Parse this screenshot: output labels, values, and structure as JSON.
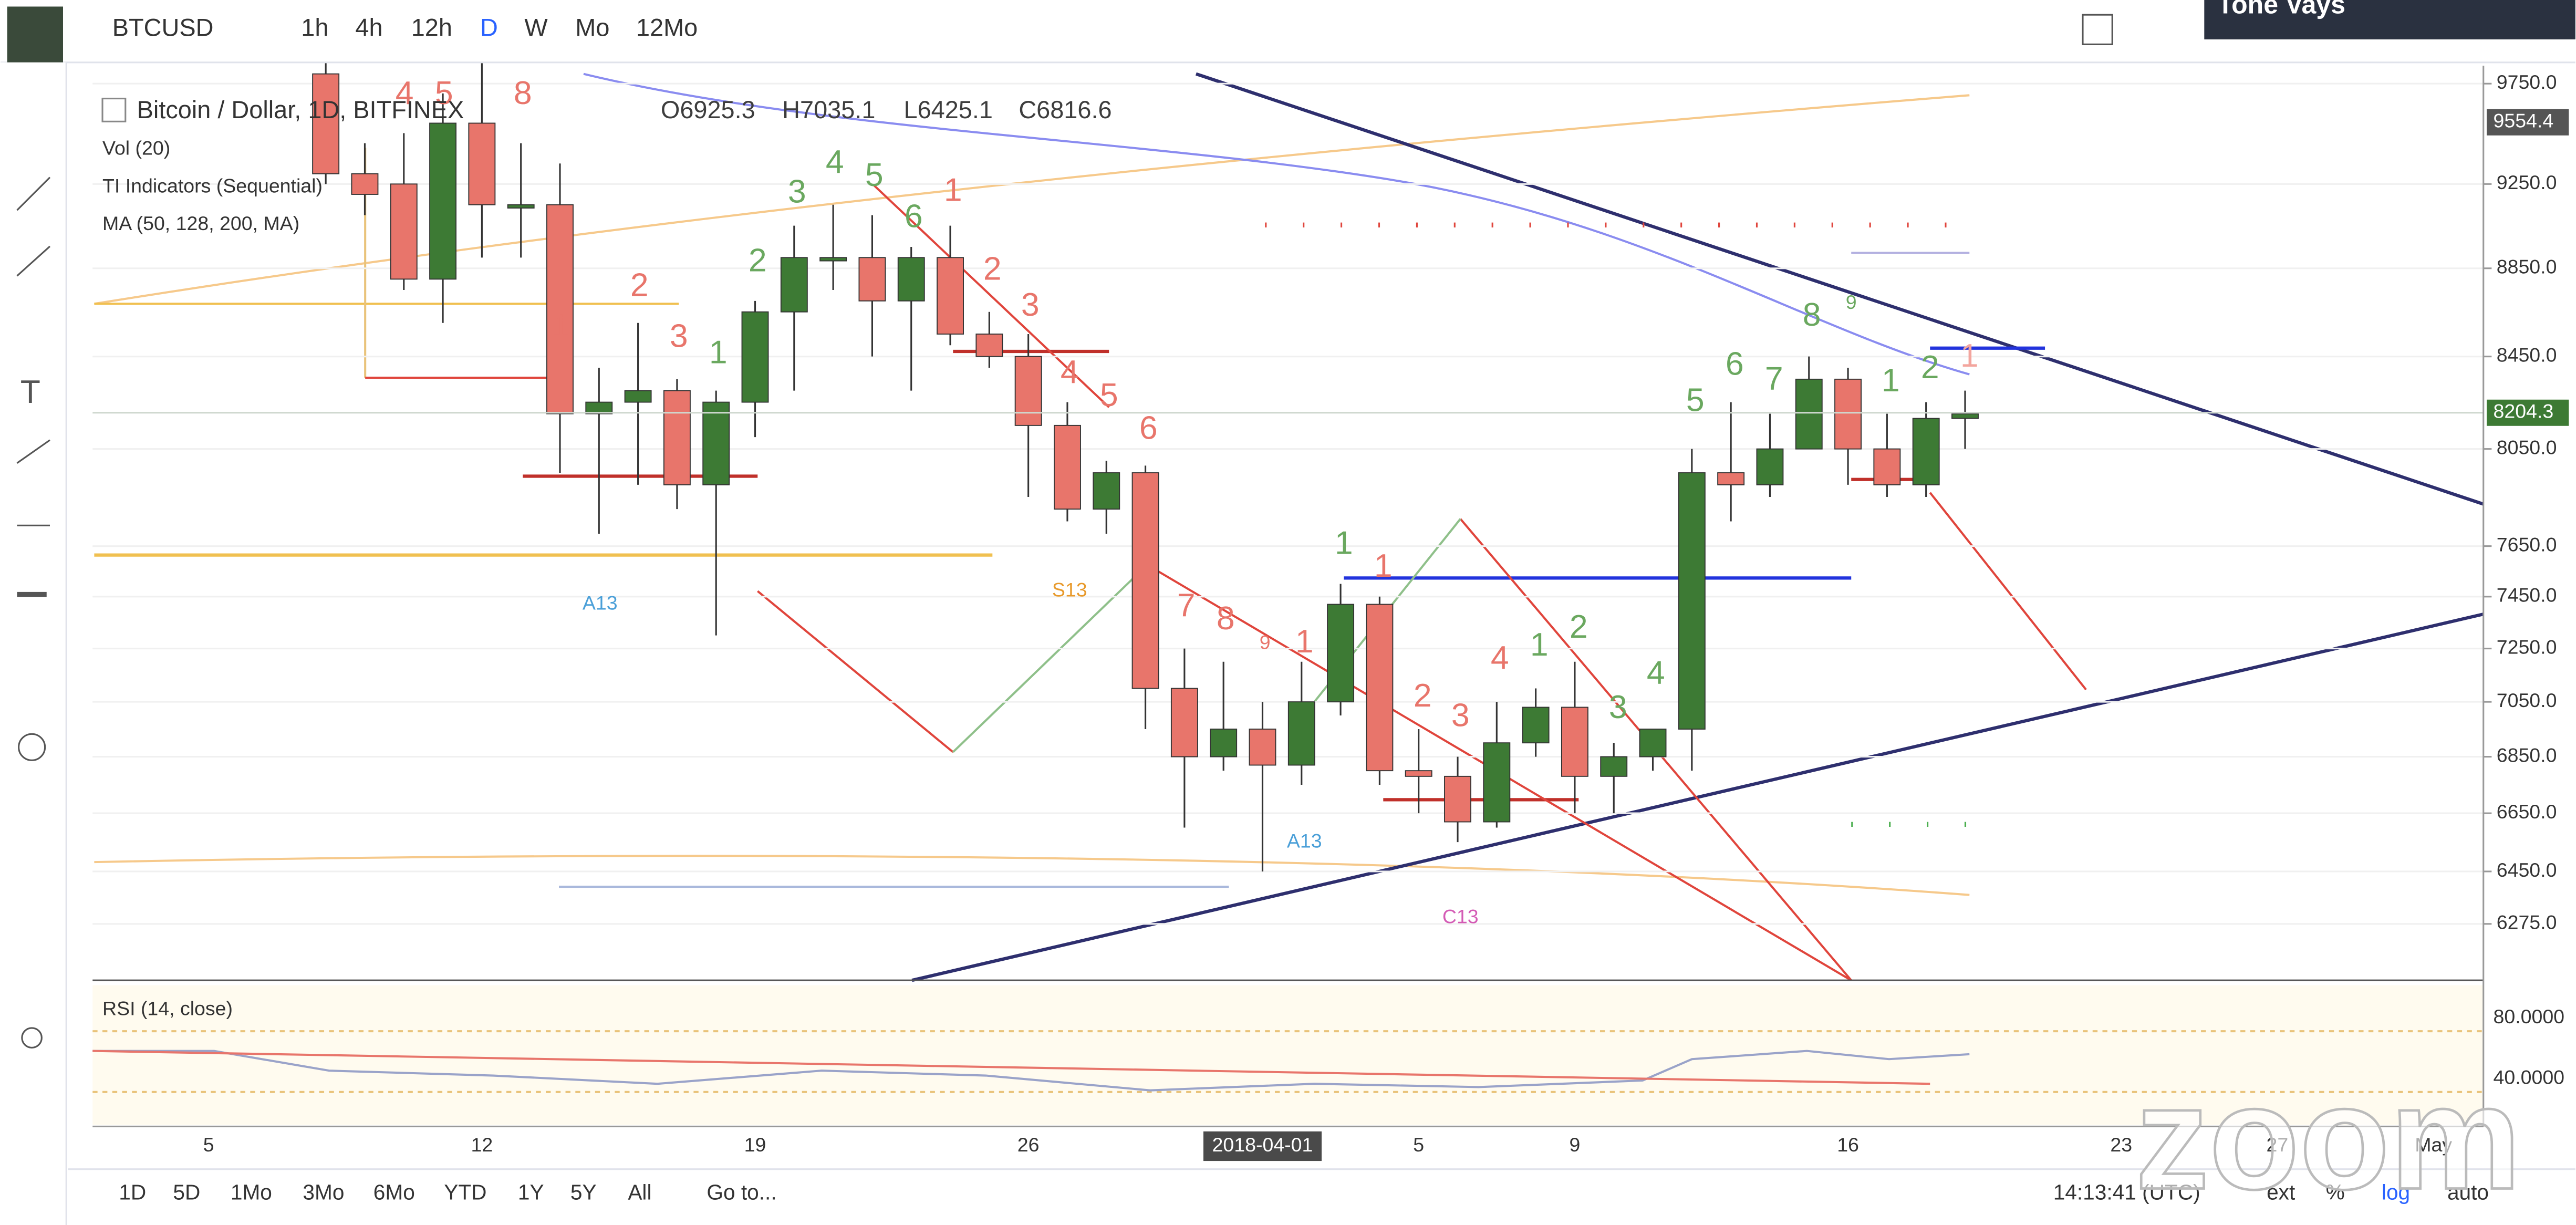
{
  "toolbar": {
    "symbol": "BTCUSD",
    "intervals": [
      "1h",
      "4h",
      "12h",
      "D",
      "W",
      "Mo",
      "12Mo"
    ]
  },
  "legend": {
    "title": "Bitcoin / Dollar, 1D, BITFINEX",
    "ohlc": [
      "O6925.3",
      "H7035.1",
      "L6425.1",
      "C6816.6"
    ],
    "indicators": [
      "Vol (20)",
      "TI Indicators (Sequential)",
      "MA (50, 128, 200, MA)"
    ]
  },
  "rsi": {
    "title": "RSI (14, close)",
    "ticks": [
      "80.0000",
      "40.0000"
    ]
  },
  "bottom_bar": {
    "ranges": [
      "1D",
      "5D",
      "1Mo",
      "3Mo",
      "6Mo",
      "YTD",
      "1Y",
      "5Y",
      "All",
      "Go to..."
    ],
    "clock": "14:13:41 (UTC)",
    "options": [
      "ext",
      "%",
      "log",
      "auto"
    ]
  },
  "webcam": "Tone Vays",
  "watermark": "zoom",
  "chart_data": {
    "type": "candlestick",
    "log_scale": true,
    "grid": true,
    "up_color": "#3d7a34",
    "down_color": "#e8756b",
    "x_labels": [
      "5",
      "12",
      "19",
      "26",
      "2018-04-01",
      "5",
      "9",
      "16",
      "23",
      "27",
      "May"
    ],
    "open": [
      9800,
      9300,
      9250,
      8800,
      9550,
      9150,
      9150,
      8200,
      8250,
      8300,
      7900,
      8250,
      8650,
      8900,
      8900,
      8700,
      8900,
      8550,
      8450,
      8150,
      7800,
      7950,
      7100,
      6850,
      6950,
      6820,
      7050,
      7420,
      6800,
      6780,
      6620,
      6900,
      7030,
      6780,
      6850,
      6950,
      7950,
      7900,
      8050,
      8350,
      8050,
      7900,
      8180
    ],
    "high": [
      9950,
      9450,
      9500,
      9700,
      9900,
      9450,
      9350,
      8400,
      8600,
      8350,
      8300,
      8700,
      9050,
      9150,
      9100,
      8950,
      9050,
      8650,
      8550,
      8250,
      8000,
      7980,
      7250,
      7200,
      7050,
      7200,
      7500,
      7450,
      6950,
      6850,
      7050,
      7100,
      7200,
      6900,
      6950,
      8050,
      8250,
      8200,
      8450,
      8400,
      8200,
      8250,
      8300
    ],
    "low": [
      9250,
      9100,
      8750,
      8600,
      8900,
      8900,
      7950,
      7700,
      7900,
      7800,
      7300,
      8100,
      8300,
      8750,
      8450,
      8300,
      8500,
      8400,
      7850,
      7750,
      7700,
      6950,
      6600,
      6800,
      6450,
      6750,
      7000,
      6750,
      6650,
      6550,
      6600,
      6850,
      6650,
      6650,
      6800,
      6800,
      7750,
      7850,
      8050,
      7900,
      7850,
      7850,
      8050
    ],
    "close": [
      9300,
      9200,
      8800,
      9550,
      9150,
      9150,
      8200,
      8250,
      8300,
      7900,
      8250,
      8650,
      8900,
      8900,
      8700,
      8900,
      8550,
      8450,
      8150,
      7800,
      7950,
      7100,
      6850,
      6950,
      6820,
      7050,
      7420,
      6800,
      6780,
      6620,
      6900,
      7030,
      6780,
      6850,
      6950,
      7950,
      7900,
      8050,
      8350,
      8050,
      7900,
      8180,
      8200
    ],
    "ylim": [
      6092,
      9800
    ],
    "yticks": [
      {
        "value": 9750,
        "label": "9750.0"
      },
      {
        "value": 9250,
        "label": "9250.0"
      },
      {
        "value": 8850,
        "label": "8850.0"
      },
      {
        "value": 8450,
        "label": "8450.0"
      },
      {
        "value": 8050,
        "label": "8050.0"
      },
      {
        "value": 7650,
        "label": "7650.0"
      },
      {
        "value": 7450,
        "label": "7450.0"
      },
      {
        "value": 7250,
        "label": "7250.0"
      },
      {
        "value": 7050,
        "label": "7050.0"
      },
      {
        "value": 6850,
        "label": "6850.0"
      },
      {
        "value": 6650,
        "label": "6650.0"
      },
      {
        "value": 6450,
        "label": "6450.0"
      },
      {
        "value": 6275,
        "label": "6275.0"
      }
    ],
    "price_marks": [
      {
        "value": 9554.4,
        "label": "9554.4",
        "color": "#555555"
      },
      {
        "value": 8204.3,
        "label": "8204.3",
        "color": "#3d7a34"
      }
    ],
    "annotations": [
      {
        "text": "4",
        "color": "#e8756b"
      },
      {
        "text": "5",
        "color": "#e8756b"
      },
      {
        "text": "8",
        "color": "#e8756b"
      },
      {
        "text": "1",
        "color": "#e8756b"
      },
      {
        "text": "2",
        "color": "#e8756b"
      },
      {
        "text": "3",
        "color": "#e8756b"
      },
      {
        "text": "1",
        "color": "#6aa85f"
      },
      {
        "text": "2",
        "color": "#6aa85f"
      },
      {
        "text": "3",
        "color": "#6aa85f"
      },
      {
        "text": "4",
        "color": "#6aa85f"
      },
      {
        "text": "5",
        "color": "#6aa85f"
      },
      {
        "text": "6",
        "color": "#6aa85f"
      },
      {
        "text": "1",
        "color": "#e8756b"
      },
      {
        "text": "2",
        "color": "#e8756b"
      },
      {
        "text": "3",
        "color": "#e8756b"
      },
      {
        "text": "4",
        "color": "#e8756b"
      },
      {
        "text": "5",
        "color": "#e8756b"
      },
      {
        "text": "6",
        "color": "#e8756b"
      },
      {
        "text": "7",
        "color": "#e8756b"
      },
      {
        "text": "8",
        "color": "#e8756b"
      },
      {
        "text": "9",
        "color": "#e8756b"
      },
      {
        "text": "1",
        "color": "#e8756b"
      },
      {
        "text": "1",
        "color": "#6aa85f"
      },
      {
        "text": "1",
        "color": "#e8756b"
      },
      {
        "text": "2",
        "color": "#e8756b"
      },
      {
        "text": "3",
        "color": "#e8756b"
      },
      {
        "text": "4",
        "color": "#e8756b"
      },
      {
        "text": "1",
        "color": "#6aa85f"
      },
      {
        "text": "2",
        "color": "#6aa85f"
      },
      {
        "text": "3",
        "color": "#6aa85f"
      },
      {
        "text": "4",
        "color": "#6aa85f"
      },
      {
        "text": "5",
        "color": "#6aa85f"
      },
      {
        "text": "6",
        "color": "#6aa85f"
      },
      {
        "text": "7",
        "color": "#6aa85f"
      },
      {
        "text": "8",
        "color": "#6aa85f"
      },
      {
        "text": "9",
        "color": "#6aa85f"
      },
      {
        "text": "1",
        "color": "#6aa85f"
      },
      {
        "text": "2",
        "color": "#6aa85f"
      },
      {
        "text": "1",
        "color": "#f3a59e"
      },
      {
        "text": "A13",
        "color": "#4a9fd8"
      },
      {
        "text": "S13",
        "color": "#e89a2c"
      },
      {
        "text": "A13",
        "color": "#4a9fd8"
      },
      {
        "text": "C13",
        "color": "#d45bb5"
      }
    ]
  }
}
